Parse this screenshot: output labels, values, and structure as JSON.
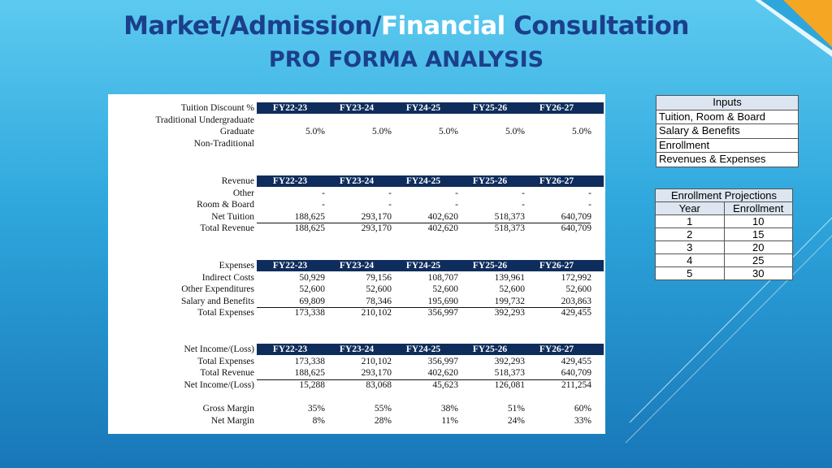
{
  "title": {
    "part1": "Market/Admission/",
    "part2": "Financial",
    "part3": " Consultation",
    "subtitle": "PRO FORMA ANALYSIS"
  },
  "years": [
    "FY22-23",
    "FY23-24",
    "FY24-25",
    "FY25-26",
    "FY26-27"
  ],
  "discount": {
    "header": "Tuition Discount %",
    "rows": [
      {
        "label": "Traditional Undergraduate",
        "values": [
          "",
          "",
          "",
          "",
          ""
        ]
      },
      {
        "label": "Graduate",
        "values": [
          "5.0%",
          "5.0%",
          "5.0%",
          "5.0%",
          "5.0%"
        ]
      },
      {
        "label": "Non-Traditional",
        "values": [
          "",
          "",
          "",
          "",
          ""
        ]
      }
    ]
  },
  "revenue": {
    "header": "Revenue",
    "rows": [
      {
        "label": "Other",
        "values": [
          "-",
          "-",
          "-",
          "-",
          "-"
        ]
      },
      {
        "label": "Room & Board",
        "values": [
          "-",
          "-",
          "-",
          "-",
          "-"
        ]
      },
      {
        "label": "Net Tuition",
        "values": [
          "188,625",
          "293,170",
          "402,620",
          "518,373",
          "640,709"
        ]
      },
      {
        "label": "Total Revenue",
        "values": [
          "188,625",
          "293,170",
          "402,620",
          "518,373",
          "640,709"
        ]
      }
    ]
  },
  "expenses": {
    "header": "Expenses",
    "rows": [
      {
        "label": "Indirect Costs",
        "values": [
          "50,929",
          "79,156",
          "108,707",
          "139,961",
          "172,992"
        ]
      },
      {
        "label": "Other Expenditures",
        "values": [
          "52,600",
          "52,600",
          "52,600",
          "52,600",
          "52,600"
        ]
      },
      {
        "label": "Salary and Benefits",
        "values": [
          "69,809",
          "78,346",
          "195,690",
          "199,732",
          "203,863"
        ]
      },
      {
        "label": "Total Expenses",
        "values": [
          "173,338",
          "210,102",
          "356,997",
          "392,293",
          "429,455"
        ]
      }
    ]
  },
  "net_income": {
    "header": "Net Income/(Loss)",
    "rows": [
      {
        "label": "Total Expenses",
        "values": [
          "173,338",
          "210,102",
          "356,997",
          "392,293",
          "429,455"
        ]
      },
      {
        "label": "Total Revenue",
        "values": [
          "188,625",
          "293,170",
          "402,620",
          "518,373",
          "640,709"
        ]
      },
      {
        "label": "Net Income/(Loss)",
        "values": [
          "15,288",
          "83,068",
          "45,623",
          "126,081",
          "211,254"
        ]
      }
    ]
  },
  "margins": {
    "rows": [
      {
        "label": "Gross Margin",
        "values": [
          "35%",
          "55%",
          "38%",
          "51%",
          "60%"
        ]
      },
      {
        "label": "Net Margin",
        "values": [
          "8%",
          "28%",
          "11%",
          "24%",
          "33%"
        ]
      }
    ]
  },
  "inputs_box": {
    "header": "Inputs",
    "items": [
      "Tuition, Room & Board",
      "Salary & Benefits",
      "Enrollment",
      "Revenues & Expenses"
    ]
  },
  "enrollment_box": {
    "header": "Enrollment Projections",
    "columns": [
      "Year",
      "Enrollment"
    ],
    "rows": [
      [
        "1",
        "10"
      ],
      [
        "2",
        "15"
      ],
      [
        "3",
        "20"
      ],
      [
        "4",
        "25"
      ],
      [
        "5",
        "30"
      ]
    ]
  },
  "colors": {
    "title_blue": "#1b3f8b",
    "header_navy": "#0f2d5c",
    "accent_orange": "#f5a623"
  }
}
